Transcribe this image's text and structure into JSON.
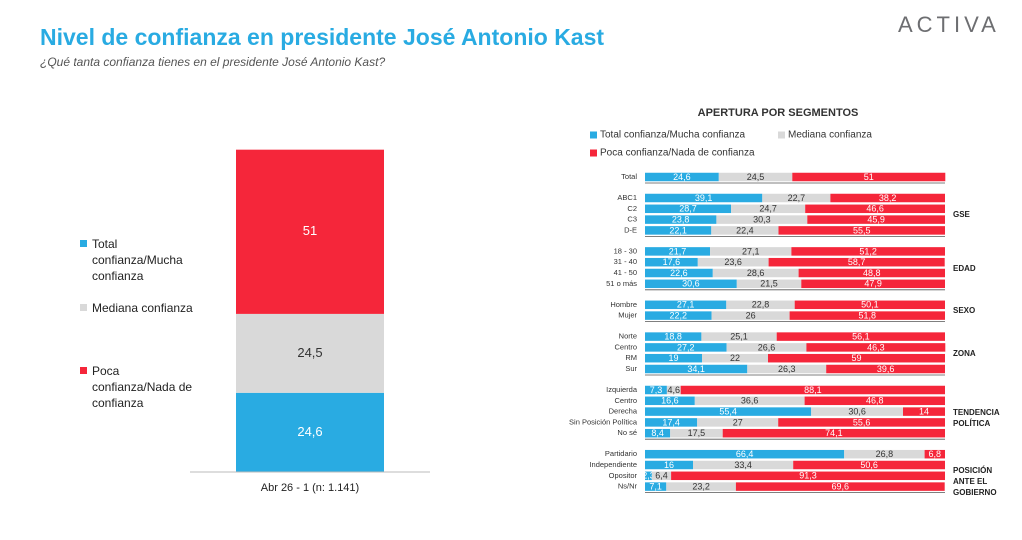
{
  "header": {
    "title": "Nivel de confianza en presidente José Antonio Kast",
    "subtitle": "¿Qué tanta confianza tienes en el presidente José Antonio Kast?",
    "brand": "ACTIVA"
  },
  "chart_data": [
    {
      "type": "stacked-bar",
      "categories": [
        "Abr 26 - 1 (n: 1.141)"
      ],
      "ylim": [
        0,
        100
      ],
      "series": [
        {
          "name": "Total confianza/Mucha confianza",
          "color": "#29abe2",
          "values": [
            24.6
          ],
          "value_labels": [
            "24,6"
          ]
        },
        {
          "name": "Mediana confianza",
          "color": "#d9d9d9",
          "values": [
            24.5
          ],
          "value_labels": [
            "24,5"
          ]
        },
        {
          "name": "Poca confianza/Nada de confianza",
          "color": "#f5263a",
          "values": [
            51
          ],
          "value_labels": [
            "51"
          ]
        }
      ]
    },
    {
      "type": "stacked-barh",
      "title": "APERTURA POR SEGMENTOS",
      "xlim": [
        0,
        100
      ],
      "series": [
        {
          "name": "Total confianza/Mucha confianza",
          "color": "#29abe2"
        },
        {
          "name": "Mediana confianza",
          "color": "#d9d9d9"
        },
        {
          "name": "Poca confianza/Nada de confianza",
          "color": "#f5263a"
        }
      ],
      "groups": [
        {
          "name": null,
          "categories": [
            "Total"
          ],
          "values": [
            [
              24.6,
              24.5,
              51
            ]
          ],
          "value_labels": [
            [
              "24,6",
              "24,5",
              "51"
            ]
          ]
        },
        {
          "name": "GSE",
          "categories": [
            "ABC1",
            "C2",
            "C3",
            "D-E"
          ],
          "values": [
            [
              39.1,
              22.7,
              38.2
            ],
            [
              28.7,
              24.7,
              46.6
            ],
            [
              23.8,
              30.3,
              45.9
            ],
            [
              22.1,
              22.4,
              55.5
            ]
          ],
          "value_labels": [
            [
              "39,1",
              "22,7",
              "38,2"
            ],
            [
              "28,7",
              "24,7",
              "46,6"
            ],
            [
              "23,8",
              "30,3",
              "45,9"
            ],
            [
              "22,1",
              "22,4",
              "55,5"
            ]
          ]
        },
        {
          "name": "EDAD",
          "categories": [
            "18 - 30",
            "31 - 40",
            "41 - 50",
            "51 o más"
          ],
          "values": [
            [
              21.7,
              27.1,
              51.2
            ],
            [
              17.6,
              23.6,
              58.7
            ],
            [
              22.6,
              28.6,
              48.8
            ],
            [
              30.6,
              21.5,
              47.9
            ]
          ],
          "value_labels": [
            [
              "21,7",
              "27,1",
              "51,2"
            ],
            [
              "17,6",
              "23,6",
              "58,7"
            ],
            [
              "22,6",
              "28,6",
              "48,8"
            ],
            [
              "30,6",
              "21,5",
              "47,9"
            ]
          ]
        },
        {
          "name": "SEXO",
          "categories": [
            "Hombre",
            "Mujer"
          ],
          "values": [
            [
              27.1,
              22.8,
              50.1
            ],
            [
              22.2,
              26,
              51.8
            ]
          ],
          "value_labels": [
            [
              "27,1",
              "22,8",
              "50,1"
            ],
            [
              "22,2",
              "26",
              "51,8"
            ]
          ]
        },
        {
          "name": "ZONA",
          "categories": [
            "Norte",
            "Centro",
            "RM",
            "Sur"
          ],
          "values": [
            [
              18.8,
              25.1,
              56.1
            ],
            [
              27.2,
              26.6,
              46.3
            ],
            [
              19,
              22,
              59
            ],
            [
              34.1,
              26.3,
              39.6
            ]
          ],
          "value_labels": [
            [
              "18,8",
              "25,1",
              "56,1"
            ],
            [
              "27,2",
              "26,6",
              "46,3"
            ],
            [
              "19",
              "22",
              "59"
            ],
            [
              "34,1",
              "26,3",
              "39,6"
            ]
          ]
        },
        {
          "name": "TENDENCIA POLÍTICA",
          "categories": [
            "Izquierda",
            "Centro",
            "Derecha",
            "Sin Posición Política",
            "No sé"
          ],
          "values": [
            [
              7.3,
              4.6,
              88.1
            ],
            [
              16.6,
              36.6,
              46.8
            ],
            [
              55.4,
              30.6,
              14
            ],
            [
              17.4,
              27,
              55.6
            ],
            [
              8.4,
              17.5,
              74.1
            ]
          ],
          "value_labels": [
            [
              "7,3",
              "4,6",
              "88,1"
            ],
            [
              "16,6",
              "36,6",
              "46,8"
            ],
            [
              "55,4",
              "30,6",
              "14"
            ],
            [
              "17,4",
              "27",
              "55,6"
            ],
            [
              "8,4",
              "17,5",
              "74,1"
            ]
          ]
        },
        {
          "name": "POSICIÓN ANTE EL GOBIERNO",
          "categories": [
            "Partidario",
            "Independiente",
            "Opositor",
            "Ns/Nr"
          ],
          "values": [
            [
              66.4,
              26.8,
              6.8
            ],
            [
              16,
              33.4,
              50.6
            ],
            [
              2.3,
              6.4,
              91.3
            ],
            [
              7.1,
              23.2,
              69.6
            ]
          ],
          "value_labels": [
            [
              "66,4",
              "26,8",
              "6,8"
            ],
            [
              "16",
              "33,4",
              "50,6"
            ],
            [
              "2,3",
              "6,4",
              "91,3"
            ],
            [
              "7,1",
              "23,2",
              "69,6"
            ]
          ]
        }
      ]
    }
  ]
}
